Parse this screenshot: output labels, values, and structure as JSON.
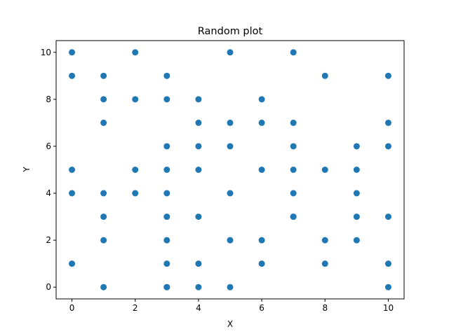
{
  "chart_data": {
    "type": "scatter",
    "title": "Random plot",
    "xlabel": "X",
    "ylabel": "Y",
    "xlim": [
      -0.5,
      10.5
    ],
    "ylim": [
      -0.5,
      10.5
    ],
    "xticks": [
      "0",
      "2",
      "4",
      "6",
      "8",
      "10"
    ],
    "yticks": [
      "0",
      "2",
      "4",
      "6",
      "8",
      "10"
    ],
    "grid": false,
    "color": "#1f77b4",
    "x": [
      0,
      0,
      0,
      0,
      0,
      1,
      1,
      1,
      1,
      1,
      1,
      1,
      2,
      2,
      2,
      2,
      3,
      3,
      3,
      3,
      3,
      3,
      3,
      3,
      3,
      3,
      4,
      4,
      4,
      4,
      4,
      4,
      4,
      5,
      5,
      5,
      5,
      5,
      5,
      6,
      6,
      6,
      6,
      6,
      7,
      7,
      7,
      7,
      7,
      7,
      7,
      8,
      8,
      8,
      8,
      9,
      9,
      9,
      9,
      9,
      10,
      10,
      10,
      10,
      10,
      10
    ],
    "y": [
      10,
      9,
      5,
      4,
      1,
      9,
      8,
      7,
      4,
      3,
      2,
      0,
      10,
      8,
      5,
      4,
      9,
      8,
      6,
      5,
      4,
      3,
      2,
      1,
      0,
      0,
      8,
      7,
      6,
      5,
      3,
      1,
      0,
      10,
      7,
      6,
      4,
      2,
      0,
      8,
      7,
      5,
      2,
      1,
      10,
      7,
      6,
      5,
      4,
      3,
      3,
      9,
      5,
      2,
      1,
      6,
      5,
      4,
      3,
      2,
      9,
      7,
      6,
      3,
      1,
      0
    ]
  }
}
